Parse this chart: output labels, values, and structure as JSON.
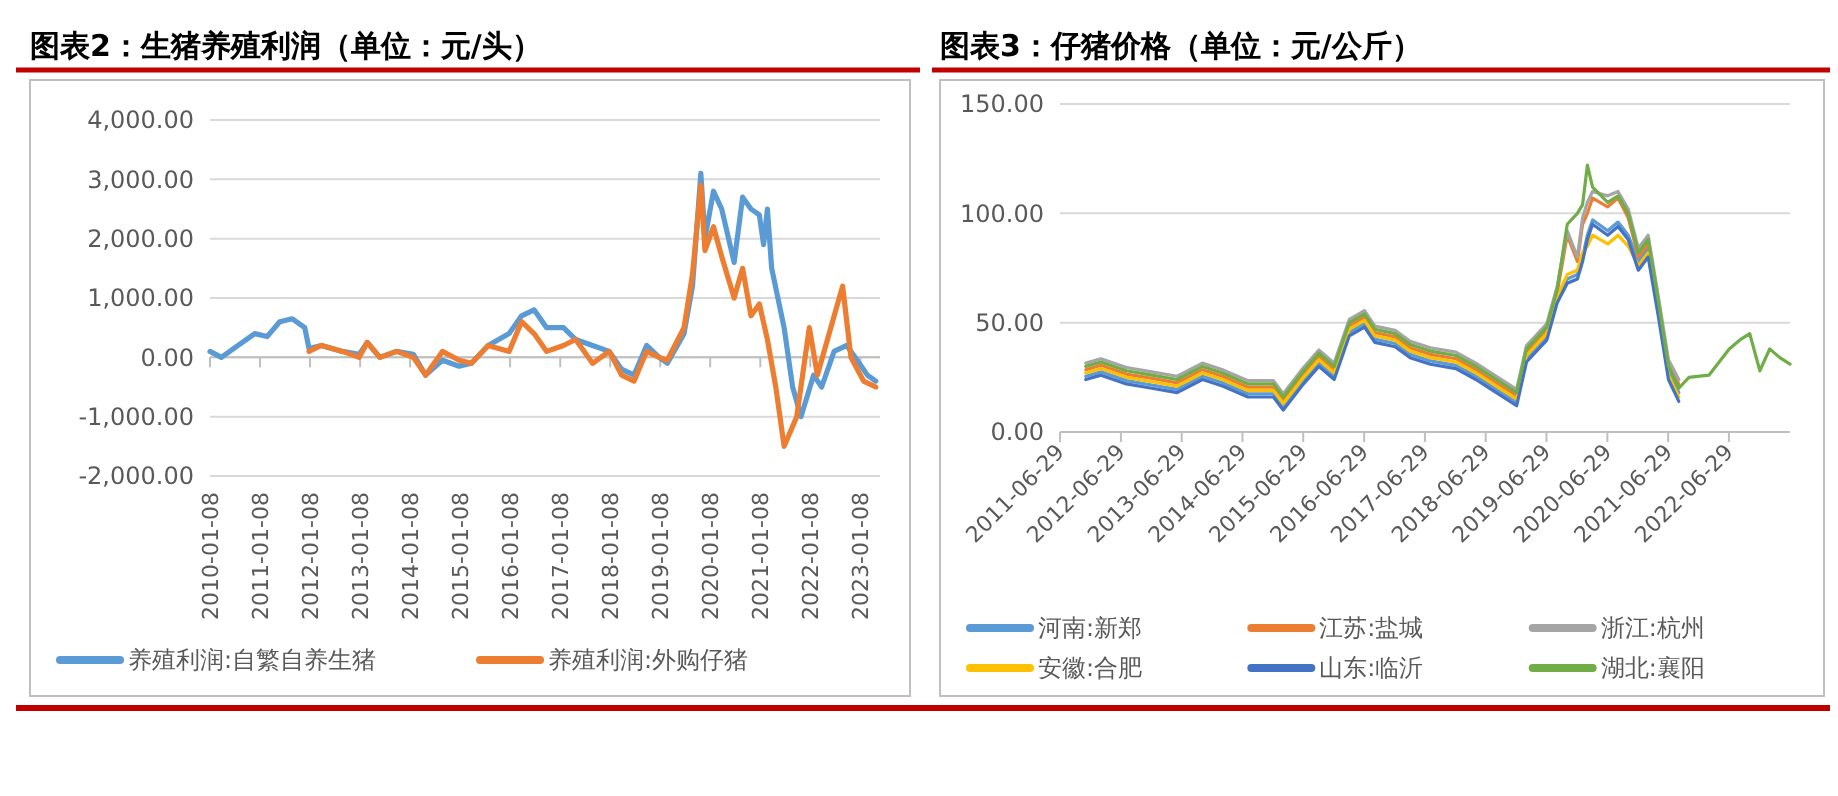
{
  "chart_data": [
    {
      "type": "line",
      "title": "图表2：生猪养殖利润（单位：元/头）",
      "xlim": [
        "2010-01-08",
        "2023-06-01"
      ],
      "xticks": [
        {
          "value": "2010-01-08",
          "label": "2010-01-08"
        },
        {
          "value": "2011-01-08",
          "label": "2011-01-08"
        },
        {
          "value": "2012-01-08",
          "label": "2012-01-08"
        },
        {
          "value": "2013-01-08",
          "label": "2013-01-08"
        },
        {
          "value": "2014-01-08",
          "label": "2014-01-08"
        },
        {
          "value": "2015-01-08",
          "label": "2015-01-08"
        },
        {
          "value": "2016-01-08",
          "label": "2016-01-08"
        },
        {
          "value": "2017-01-08",
          "label": "2017-01-08"
        },
        {
          "value": "2018-01-08",
          "label": "2018-01-08"
        },
        {
          "value": "2019-01-08",
          "label": "2019-01-08"
        },
        {
          "value": "2020-01-08",
          "label": "2020-01-08"
        },
        {
          "value": "2021-01-08",
          "label": "2021-01-08"
        },
        {
          "value": "2022-01-08",
          "label": "2022-01-08"
        },
        {
          "value": "2023-01-08",
          "label": "2023-01-08"
        }
      ],
      "ylim": [
        -2000,
        4000
      ],
      "yticks": [
        {
          "value": -2000,
          "label": "-2,000.00"
        },
        {
          "value": -1000,
          "label": "-1,000.00"
        },
        {
          "value": 0,
          "label": "0.00"
        },
        {
          "value": 1000,
          "label": "1,000.00"
        },
        {
          "value": 2000,
          "label": "2,000.00"
        },
        {
          "value": 3000,
          "label": "3,000.00"
        },
        {
          "value": 4000,
          "label": "4,000.00"
        }
      ],
      "grid": "y",
      "legend": "bottom",
      "series": [
        {
          "name": "养殖利润:自繁自养生猪",
          "color": "#5b9bd5",
          "x": [
            "2010-01-08",
            "2010-04",
            "2010-08",
            "2010-12",
            "2011-03",
            "2011-06",
            "2011-09",
            "2011-12",
            "2012-01",
            "2012-04",
            "2012-09",
            "2013-01",
            "2013-03",
            "2013-06",
            "2013-10",
            "2014-02",
            "2014-05",
            "2014-09",
            "2015-01",
            "2015-04",
            "2015-08",
            "2016-01",
            "2016-04",
            "2016-07",
            "2016-10",
            "2017-02",
            "2017-05",
            "2017-09",
            "2018-01",
            "2018-04",
            "2018-07",
            "2018-10",
            "2019-01",
            "2019-03",
            "2019-07",
            "2019-09",
            "2019-11",
            "2019-12",
            "2020-02",
            "2020-04",
            "2020-07",
            "2020-09",
            "2020-11",
            "2021-01",
            "2021-02",
            "2021-03",
            "2021-04",
            "2021-07",
            "2021-09",
            "2021-11",
            "2022-02",
            "2022-04",
            "2022-07",
            "2022-10",
            "2023-01",
            "2023-03",
            "2023-05"
          ],
          "values": [
            100,
            0,
            200,
            400,
            350,
            600,
            650,
            500,
            150,
            200,
            100,
            50,
            250,
            0,
            100,
            50,
            -300,
            -50,
            -150,
            -100,
            200,
            400,
            700,
            800,
            500,
            500,
            300,
            200,
            100,
            -200,
            -300,
            200,
            0,
            -100,
            400,
            1200,
            3100,
            2000,
            2800,
            2500,
            1600,
            2700,
            2500,
            2400,
            1900,
            2500,
            1500,
            500,
            -500,
            -1000,
            -300,
            -500,
            100,
            200,
            -100,
            -300,
            -400
          ]
        },
        {
          "name": "养殖利润:外购仔猪",
          "color": "#ed7d31",
          "x": [
            "2012-01",
            "2012-04",
            "2012-09",
            "2013-01",
            "2013-03",
            "2013-06",
            "2013-10",
            "2014-02",
            "2014-05",
            "2014-09",
            "2015-01",
            "2015-04",
            "2015-08",
            "2016-01",
            "2016-04",
            "2016-07",
            "2016-10",
            "2017-02",
            "2017-05",
            "2017-09",
            "2018-01",
            "2018-04",
            "2018-07",
            "2018-10",
            "2019-01",
            "2019-03",
            "2019-07",
            "2019-09",
            "2019-11",
            "2019-12",
            "2020-02",
            "2020-04",
            "2020-07",
            "2020-09",
            "2020-11",
            "2021-01",
            "2021-03",
            "2021-05",
            "2021-07",
            "2021-10",
            "2022-01",
            "2022-03",
            "2022-05",
            "2022-09",
            "2022-11",
            "2023-02",
            "2023-05"
          ],
          "values": [
            100,
            200,
            100,
            0,
            250,
            0,
            100,
            0,
            -300,
            100,
            -50,
            -100,
            200,
            100,
            600,
            400,
            100,
            200,
            300,
            -100,
            100,
            -300,
            -400,
            100,
            0,
            -50,
            500,
            1400,
            2900,
            1800,
            2200,
            1700,
            1000,
            1500,
            700,
            900,
            300,
            -500,
            -1500,
            -1000,
            500,
            -300,
            200,
            1200,
            0,
            -400,
            -500
          ]
        }
      ]
    },
    {
      "type": "line",
      "title": "图表3：仔猪价格（单位：元/公斤）",
      "xlim": [
        "2011-06-29",
        "2023-07-01"
      ],
      "xticks": [
        {
          "value": "2011-06-29",
          "label": "2011-06-29"
        },
        {
          "value": "2012-06-29",
          "label": "2012-06-29"
        },
        {
          "value": "2013-06-29",
          "label": "2013-06-29"
        },
        {
          "value": "2014-06-29",
          "label": "2014-06-29"
        },
        {
          "value": "2015-06-29",
          "label": "2015-06-29"
        },
        {
          "value": "2016-06-29",
          "label": "2016-06-29"
        },
        {
          "value": "2017-06-29",
          "label": "2017-06-29"
        },
        {
          "value": "2018-06-29",
          "label": "2018-06-29"
        },
        {
          "value": "2019-06-29",
          "label": "2019-06-29"
        },
        {
          "value": "2020-06-29",
          "label": "2020-06-29"
        },
        {
          "value": "2021-06-29",
          "label": "2021-06-29"
        },
        {
          "value": "2022-06-29",
          "label": "2022-06-29"
        }
      ],
      "ylim": [
        0,
        150
      ],
      "yticks": [
        {
          "value": 0,
          "label": "0.00"
        },
        {
          "value": 50,
          "label": "50.00"
        },
        {
          "value": 100,
          "label": "100.00"
        },
        {
          "value": 150,
          "label": "150.00"
        }
      ],
      "grid": "y",
      "legend": "bottom",
      "x": [
        "2011-12",
        "2012-03",
        "2012-08",
        "2013-01",
        "2013-06",
        "2013-11",
        "2014-03",
        "2014-08",
        "2015-01",
        "2015-03",
        "2015-07",
        "2015-10",
        "2016-01",
        "2016-04",
        "2016-07",
        "2016-09",
        "2017-01",
        "2017-04",
        "2017-08",
        "2018-01",
        "2018-05",
        "2018-09",
        "2019-01",
        "2019-03",
        "2019-07",
        "2019-09",
        "2019-11",
        "2020-01",
        "2020-02",
        "2020-03",
        "2020-04",
        "2020-07",
        "2020-09",
        "2020-11",
        "2021-01",
        "2021-03",
        "2021-05",
        "2021-07",
        "2021-09",
        "2021-11",
        "2022-03",
        "2022-07",
        "2022-09",
        "2022-11",
        "2023-01",
        "2023-03",
        "2023-05",
        "2023-07"
      ],
      "series": [
        {
          "name": "河南:新郑",
          "color": "#5b9bd5",
          "values": [
            25.5,
            27.5,
            23.5,
            21.5,
            19.5,
            25.5,
            22.5,
            17.5,
            17.5,
            11.5,
            23.5,
            31.5,
            25.5,
            45.5,
            49.5,
            42.5,
            40.5,
            35.5,
            32.5,
            30.5,
            25.5,
            19.5,
            13.5,
            33.5,
            43.5,
            60.5,
            70,
            72,
            80,
            90,
            97,
            92,
            96,
            90,
            78,
            84,
            57,
            28,
            18,
            null,
            null,
            null,
            null,
            null,
            null,
            null,
            null,
            null
          ]
        },
        {
          "name": "江苏:盐城",
          "color": "#ed7d31",
          "values": [
            28.5,
            30.5,
            26.5,
            24.5,
            22.5,
            28.5,
            25.5,
            20.5,
            20.5,
            14.5,
            26.5,
            34.5,
            28.5,
            48.5,
            52.5,
            45.5,
            43.5,
            38.5,
            35.5,
            33.5,
            28.5,
            22.5,
            16.5,
            36.5,
            46.5,
            63.5,
            90,
            78,
            95,
            100,
            107,
            103,
            107,
            98,
            80,
            86,
            59,
            31,
            22,
            null,
            null,
            null,
            null,
            null,
            null,
            null,
            null,
            null
          ]
        },
        {
          "name": "浙江:杭州",
          "color": "#a5a5a5",
          "values": [
            31.5,
            33.5,
            29.5,
            27.5,
            25.5,
            31.5,
            28.5,
            23.5,
            23.5,
            17.5,
            29.5,
            37.5,
            31.5,
            51.5,
            55.5,
            48.5,
            46.5,
            41.5,
            38.5,
            36.5,
            31.5,
            25.5,
            19.5,
            39.5,
            49.5,
            66.5,
            92,
            80,
            98,
            105,
            110,
            108,
            110,
            102,
            84,
            90,
            62,
            33,
            24,
            null,
            null,
            null,
            null,
            null,
            null,
            null,
            null,
            null
          ]
        },
        {
          "name": "安徽:合肥",
          "color": "#ffc000",
          "values": [
            27,
            29,
            25,
            23,
            21,
            27,
            24,
            19,
            19,
            13,
            25,
            33,
            27,
            47,
            51,
            44,
            42,
            37,
            34,
            32,
            27,
            21,
            15,
            35,
            45,
            62,
            72,
            74,
            82,
            85,
            90,
            86,
            90,
            85,
            76,
            82,
            55,
            26,
            16,
            null,
            null,
            null,
            null,
            null,
            null,
            null,
            null,
            null
          ]
        },
        {
          "name": "山东:临沂",
          "color": "#4472c4",
          "values": [
            24,
            26,
            22,
            20,
            18,
            24,
            21,
            16,
            16,
            10,
            22,
            30,
            24,
            44,
            48,
            41,
            39,
            34,
            31,
            29,
            24,
            18,
            12,
            32,
            42,
            59,
            68,
            70,
            78,
            88,
            95,
            90,
            94,
            88,
            74,
            80,
            53,
            24,
            14,
            null,
            null,
            null,
            null,
            null,
            null,
            null,
            null,
            null
          ]
        },
        {
          "name": "湖北:襄阳",
          "color": "#70ad47",
          "values": [
            30,
            32,
            28,
            26,
            24,
            30,
            27,
            22,
            22,
            16,
            28,
            36,
            30,
            50,
            54,
            47,
            45,
            40,
            37,
            35,
            30,
            24,
            18,
            38,
            48,
            65,
            95,
            100,
            104,
            122,
            112,
            105,
            108,
            100,
            82,
            88,
            60,
            30,
            20,
            25,
            26,
            38,
            42,
            45,
            28,
            38,
            34,
            31
          ]
        }
      ]
    }
  ]
}
